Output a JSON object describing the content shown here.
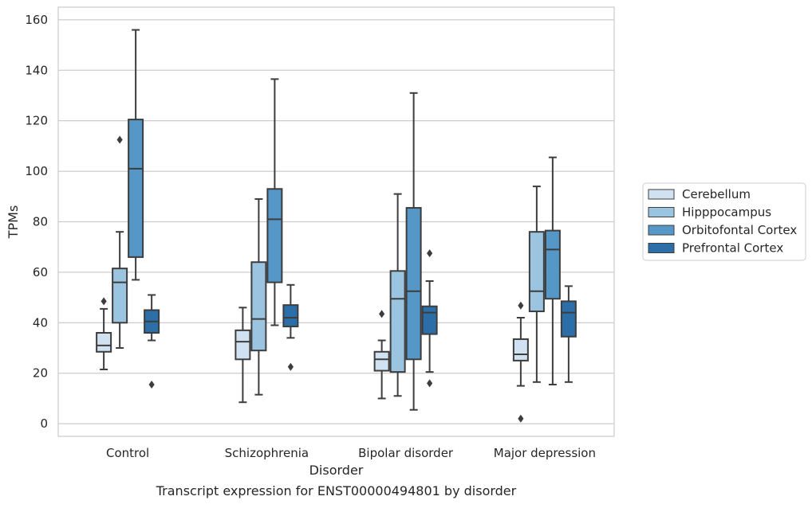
{
  "chart_data": {
    "type": "box",
    "title": "",
    "caption": "Transcript expression for ENST00000494801 by disorder",
    "xlabel": "Disorder",
    "ylabel": "TPMs",
    "ylim": [
      -5,
      165
    ],
    "yticks": [
      0,
      20,
      40,
      60,
      80,
      100,
      120,
      140,
      160
    ],
    "grid": "horizontal",
    "legend_position": "right",
    "categories": [
      "Control",
      "Schizophrenia",
      "Bipolar disorder",
      "Major depression"
    ],
    "series": [
      {
        "name": "Cerebellum",
        "color": "#d0e1f1",
        "boxes": [
          {
            "whisker_low": 21.5,
            "q1": 28.5,
            "median": 31.0,
            "q3": 36.0,
            "whisker_high": 45.5,
            "outliers": [
              48.5
            ]
          },
          {
            "whisker_low": 8.5,
            "q1": 25.5,
            "median": 32.5,
            "q3": 37.0,
            "whisker_high": 46.0,
            "outliers": []
          },
          {
            "whisker_low": 10.0,
            "q1": 21.0,
            "median": 25.5,
            "q3": 28.5,
            "whisker_high": 33.0,
            "outliers": [
              43.5
            ]
          },
          {
            "whisker_low": 15.0,
            "q1": 25.0,
            "median": 27.5,
            "q3": 33.5,
            "whisker_high": 42.0,
            "outliers": [
              46.8,
              2.0
            ]
          }
        ]
      },
      {
        "name": "Hipppocampus",
        "color": "#9ac4df",
        "boxes": [
          {
            "whisker_low": 30.0,
            "q1": 40.0,
            "median": 56.0,
            "q3": 61.5,
            "whisker_high": 76.0,
            "outliers": [
              112.5
            ]
          },
          {
            "whisker_low": 11.5,
            "q1": 29.0,
            "median": 41.5,
            "q3": 64.0,
            "whisker_high": 89.0,
            "outliers": []
          },
          {
            "whisker_low": 11.0,
            "q1": 20.5,
            "median": 49.5,
            "q3": 60.5,
            "whisker_high": 91.0,
            "outliers": []
          },
          {
            "whisker_low": 16.5,
            "q1": 44.5,
            "median": 52.5,
            "q3": 76.0,
            "whisker_high": 94.0,
            "outliers": []
          }
        ]
      },
      {
        "name": "Orbitofontal Cortex",
        "color": "#5597c6",
        "boxes": [
          {
            "whisker_low": 57.0,
            "q1": 66.0,
            "median": 101.0,
            "q3": 120.5,
            "whisker_high": 156.0,
            "outliers": []
          },
          {
            "whisker_low": 39.0,
            "q1": 56.0,
            "median": 81.0,
            "q3": 93.0,
            "whisker_high": 136.5,
            "outliers": []
          },
          {
            "whisker_low": 5.5,
            "q1": 25.5,
            "median": 52.5,
            "q3": 85.5,
            "whisker_high": 131.0,
            "outliers": []
          },
          {
            "whisker_low": 15.5,
            "q1": 49.5,
            "median": 69.0,
            "q3": 76.5,
            "whisker_high": 105.5,
            "outliers": []
          }
        ]
      },
      {
        "name": "Prefrontal Cortex",
        "color": "#2b6ea8",
        "boxes": [
          {
            "whisker_low": 33.0,
            "q1": 36.0,
            "median": 40.5,
            "q3": 45.0,
            "whisker_high": 51.0,
            "outliers": [
              15.5
            ]
          },
          {
            "whisker_low": 34.0,
            "q1": 38.5,
            "median": 42.0,
            "q3": 47.0,
            "whisker_high": 55.0,
            "outliers": [
              22.5
            ]
          },
          {
            "whisker_low": 20.5,
            "q1": 35.5,
            "median": 44.0,
            "q3": 46.5,
            "whisker_high": 56.5,
            "outliers": [
              67.5,
              16.0
            ]
          },
          {
            "whisker_low": 16.5,
            "q1": 34.5,
            "median": 44.0,
            "q3": 48.5,
            "whisker_high": 54.5,
            "outliers": []
          }
        ]
      }
    ]
  }
}
